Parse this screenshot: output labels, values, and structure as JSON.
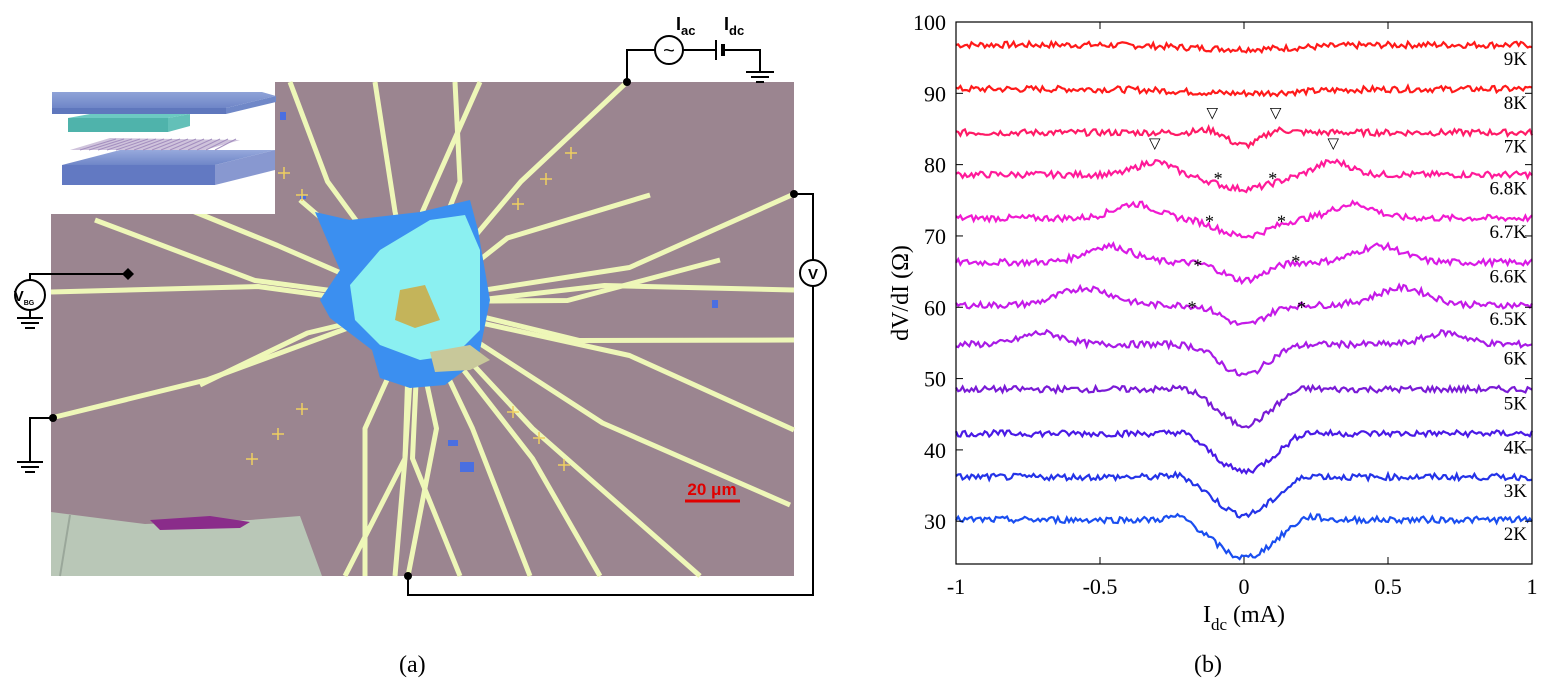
{
  "panel_a": {
    "caption": "(a)",
    "scale_bar": "20 μm",
    "source_symbols": {
      "ac": "~",
      "iac_main": "I",
      "iac_sub": "ac",
      "idc_main": "I",
      "idc_sub": "dc"
    },
    "voltmeter_symbol": "V",
    "backgate_main": "V",
    "backgate_sub": "BG",
    "colors": {
      "substrate": "#9b8590",
      "electrode": "#eef7b8",
      "flake_blue": "#3b8ff0",
      "flake_cyan": "#8ff5f0",
      "scale": "#e00000"
    }
  },
  "panel_b": {
    "caption": "(b)",
    "chart_data": {
      "type": "line",
      "xlabel_main": "I",
      "xlabel_sub": "dc",
      "xlabel_unit": "(mA)",
      "ylabel": "dV/dI (Ω)",
      "xlim": [
        -1,
        1
      ],
      "ylim": [
        24,
        100
      ],
      "xticks": [
        "-1",
        "-0.5",
        "0",
        "0.5",
        "1"
      ],
      "yticks": [
        "30",
        "40",
        "50",
        "60",
        "70",
        "80",
        "90",
        "100"
      ],
      "series": [
        {
          "name": "9K",
          "color": "#ff1a1a",
          "base": 96.8,
          "dip": 0.6,
          "dipw": 0.2,
          "peak": 0,
          "peakx": 0,
          "peakw": 0.1
        },
        {
          "name": "8K",
          "color": "#ff1a1a",
          "base": 90.6,
          "dip": 0.6,
          "dipw": 0.2,
          "peak": 0,
          "peakx": 0,
          "peakw": 0.1
        },
        {
          "name": "7K",
          "color": "#ff1a66",
          "base": 84.5,
          "dip": 1.8,
          "dipw": 0.06,
          "peak": 0.6,
          "peakx": 0.11,
          "peakw": 0.04
        },
        {
          "name": "6.8K",
          "color": "#ff1a99",
          "base": 78.6,
          "dip": 2.0,
          "dipw": 0.1,
          "peak": 1.8,
          "peakx": 0.31,
          "peakw": 0.06
        },
        {
          "name": "6.7K",
          "color": "#f01ad0",
          "base": 72.5,
          "dip": 2.5,
          "dipw": 0.09,
          "peak": 2.0,
          "peakx": 0.38,
          "peakw": 0.07
        },
        {
          "name": "6.6K",
          "color": "#d81ae6",
          "base": 66.3,
          "dip": 2.5,
          "dipw": 0.07,
          "peak": 2.3,
          "peakx": 0.47,
          "peakw": 0.08
        },
        {
          "name": "6.5K",
          "color": "#c41ae8",
          "base": 60.3,
          "dip": 2.8,
          "dipw": 0.07,
          "peak": 2.4,
          "peakx": 0.55,
          "peakw": 0.09
        },
        {
          "name": "6K",
          "color": "#a81ae6",
          "base": 54.8,
          "dip": 4.3,
          "dipw": 0.08,
          "peak": 1.6,
          "peakx": 0.7,
          "peakw": 0.07
        },
        {
          "name": "5K",
          "color": "#7a1ad6",
          "base": 48.5,
          "dip": 5.0,
          "dipw": 0.09,
          "peak": 0.4,
          "peakx": 0.2,
          "peakw": 0.04
        },
        {
          "name": "4K",
          "color": "#4a1ae6",
          "base": 42.3,
          "dip": 5.3,
          "dipw": 0.1,
          "peak": 0.6,
          "peakx": 0.21,
          "peakw": 0.04
        },
        {
          "name": "3K",
          "color": "#2433e8",
          "base": 36.2,
          "dip": 5.3,
          "dipw": 0.1,
          "peak": 0.6,
          "peakx": 0.22,
          "peakw": 0.04
        },
        {
          "name": "2K",
          "color": "#1a4ef0",
          "base": 30.2,
          "dip": 5.3,
          "dipw": 0.1,
          "peak": 0.8,
          "peakx": 0.22,
          "peakw": 0.04
        }
      ],
      "annotations": [
        {
          "text": "▽",
          "x": -0.11,
          "y": 86.6
        },
        {
          "text": "▽",
          "x": 0.11,
          "y": 86.6
        },
        {
          "text": "▽",
          "x": -0.31,
          "y": 82.3
        },
        {
          "text": "▽",
          "x": 0.31,
          "y": 82.3
        },
        {
          "text": "*",
          "x": -0.09,
          "y": 77.2
        },
        {
          "text": "*",
          "x": 0.1,
          "y": 77.2
        },
        {
          "text": "*",
          "x": -0.12,
          "y": 71.2
        },
        {
          "text": "*",
          "x": 0.13,
          "y": 71.2
        },
        {
          "text": "*",
          "x": -0.16,
          "y": 65.0
        },
        {
          "text": "*",
          "x": 0.18,
          "y": 65.6
        },
        {
          "text": "*",
          "x": -0.18,
          "y": 59.1
        },
        {
          "text": "*",
          "x": 0.2,
          "y": 59.1
        }
      ]
    }
  }
}
